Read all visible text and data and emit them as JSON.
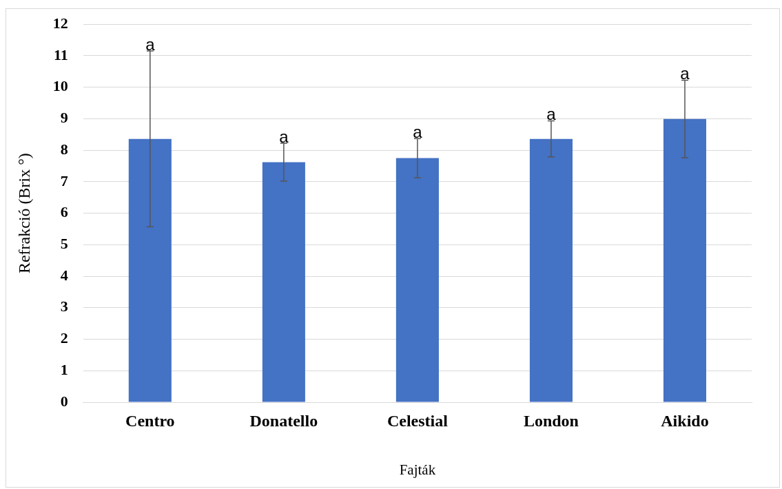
{
  "chart_data": {
    "type": "bar",
    "xlabel": "Fajták",
    "ylabel": "Refrakció (Brix °)",
    "categories": [
      "Centro",
      "Donatello",
      "Celestial",
      "London",
      "Aikido"
    ],
    "values": [
      8.36,
      7.62,
      7.75,
      8.36,
      8.99
    ],
    "errors": [
      2.79,
      0.6,
      0.62,
      0.57,
      1.23
    ],
    "color": "#4472c4",
    "ylim": [
      0,
      12
    ],
    "yticks": [
      0,
      1,
      2,
      3,
      4,
      5,
      6,
      7,
      8,
      9,
      10,
      11,
      12
    ],
    "grid": "y",
    "annotations": [
      {
        "text": "a",
        "x": "Centro",
        "y": 11.15
      },
      {
        "text": "a",
        "x": "Donatello",
        "y": 8.22
      },
      {
        "text": "a",
        "x": "Celestial",
        "y": 8.37
      },
      {
        "text": "a",
        "x": "London",
        "y": 8.93
      },
      {
        "text": "a",
        "x": "Aikido",
        "y": 10.22
      }
    ]
  }
}
